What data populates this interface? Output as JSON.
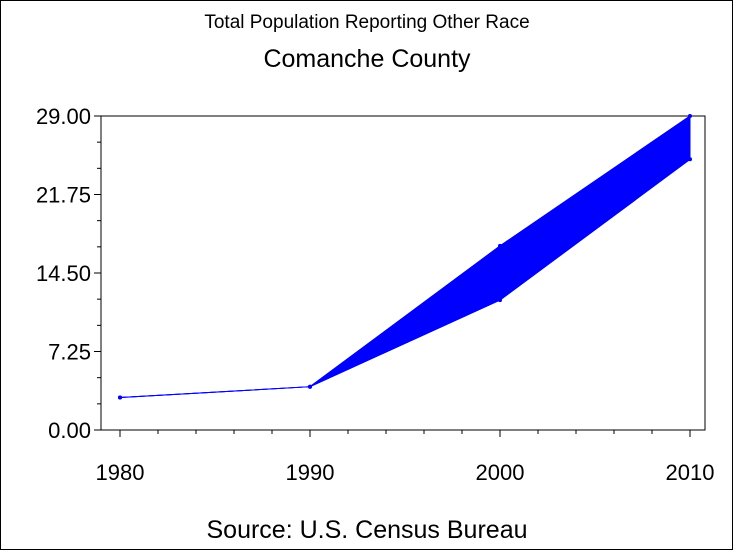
{
  "chart_data": {
    "type": "area",
    "title": "Total Population Reporting Other Race",
    "subtitle": "Comanche County",
    "footnote": "Source: U.S. Census Bureau",
    "xlabel": "",
    "ylabel": "",
    "x": [
      "1980",
      "1990",
      "2000",
      "2010"
    ],
    "x_values": [
      1980,
      1990,
      2000,
      2010
    ],
    "series": [
      {
        "values": [
          3,
          4,
          17,
          29
        ]
      },
      {
        "values": [
          3,
          4,
          12,
          25
        ]
      }
    ],
    "band_between_series": true,
    "xlim": [
      1980,
      2010
    ],
    "ylim": [
      0,
      29
    ],
    "y_ticks": [
      "0.00",
      "7.25",
      "14.50",
      "21.75",
      "29.00"
    ],
    "y_tick_values": [
      0,
      7.25,
      14.5,
      21.75,
      29
    ],
    "x_ticks": [
      "1980",
      "1990",
      "2000",
      "2010"
    ],
    "grid": false,
    "legend": "none",
    "colors": {
      "series": "#0000ff",
      "axis": "#000000",
      "background": "#ffffff"
    }
  }
}
